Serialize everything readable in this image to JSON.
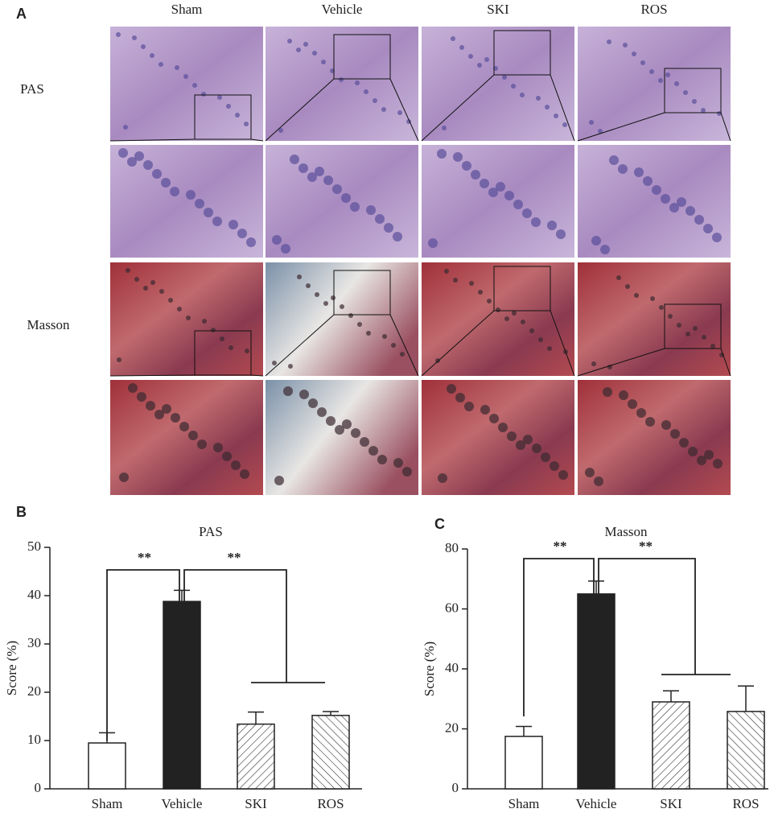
{
  "panel_a": {
    "label": "A",
    "columns": [
      "Sham",
      "Vehicle",
      "SKI",
      "ROS"
    ],
    "rows": [
      "PAS",
      "Masson"
    ]
  },
  "chart_data": [
    {
      "type": "bar",
      "panel": "B",
      "title": "PAS",
      "ylabel": "Score (%)",
      "categories": [
        "Sham",
        "Vehicle",
        "SKI",
        "ROS"
      ],
      "values": [
        9.5,
        38.8,
        13.4,
        15.2
      ],
      "errors": [
        2.1,
        2.3,
        2.5,
        0.8
      ],
      "colors": [
        "#ffffff",
        "#222222",
        "#ffffff",
        "#ffffff"
      ],
      "hatch": [
        null,
        null,
        "backslash",
        "slash"
      ],
      "ylim": [
        0,
        50
      ],
      "yticks": [
        0,
        10,
        20,
        30,
        40,
        50
      ],
      "annotations": [
        "**",
        "**"
      ]
    },
    {
      "type": "bar",
      "panel": "C",
      "title": "Masson",
      "ylabel": "Score (%)",
      "categories": [
        "Sham",
        "Vehicle",
        "SKI",
        "ROS"
      ],
      "values": [
        17.5,
        65,
        29,
        25.8
      ],
      "errors": [
        3.3,
        4.3,
        3.7,
        8.5
      ],
      "colors": [
        "#ffffff",
        "#222222",
        "#ffffff",
        "#ffffff"
      ],
      "hatch": [
        null,
        null,
        "backslash",
        "slash"
      ],
      "ylim": [
        0,
        80
      ],
      "yticks": [
        0,
        20,
        40,
        60,
        80
      ],
      "annotations": [
        "**",
        "**"
      ]
    }
  ]
}
